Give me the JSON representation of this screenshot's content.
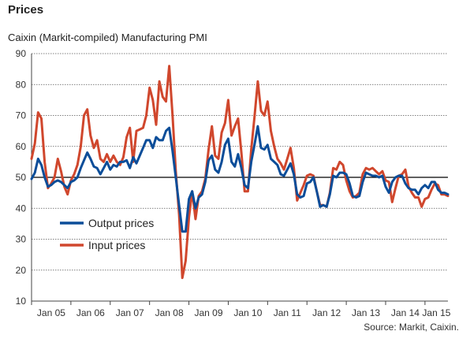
{
  "chart_data": {
    "type": "line",
    "title": "Prices",
    "subtitle": "Caixin (Markit-compiled) Manufacturing PMI",
    "source": "Source: Markit, Caixin.",
    "ylim": [
      10,
      90
    ],
    "yticks": [
      10,
      20,
      30,
      40,
      50,
      60,
      70,
      80,
      90
    ],
    "xticks": [
      "Jan 05",
      "Jan 06",
      "Jan 07",
      "Jan 08",
      "Jan 09",
      "Jan 10",
      "Jan 11",
      "Jan 12",
      "Jan 13",
      "Jan 14",
      "Jan 15"
    ],
    "reference_line": 50,
    "grid": "horizontal dotted",
    "legend_position": "lower-left",
    "start_month": "Jan 05",
    "series": [
      {
        "name": "Output prices",
        "color": "#0b4d99",
        "values": [
          49.5,
          51.5,
          56,
          54,
          50,
          47,
          47.5,
          48.5,
          49,
          48.5,
          47.5,
          46.5,
          48.5,
          49,
          50,
          53,
          55.5,
          58,
          56,
          53.5,
          53,
          51,
          53,
          55,
          52.5,
          54,
          53.5,
          55,
          55,
          55.5,
          53,
          56.5,
          54.5,
          57,
          59.5,
          62,
          62,
          59.5,
          63,
          62,
          62,
          65,
          66,
          58.5,
          50,
          41,
          32.5,
          32.5,
          43,
          45.5,
          40,
          43.5,
          44.5,
          48.5,
          55.5,
          57,
          52.5,
          51.5,
          55,
          60.5,
          62.5,
          55,
          53.5,
          57.5,
          53,
          47.5,
          46.5,
          55,
          60.5,
          66.5,
          59.5,
          59,
          60.5,
          56,
          55,
          54,
          51,
          50.5,
          52.5,
          54.5,
          51,
          44.5,
          43.5,
          44,
          48,
          48.5,
          50,
          45.5,
          40.5,
          41,
          40.5,
          44.5,
          50.5,
          50,
          51.5,
          51.5,
          51,
          48,
          44,
          43.5,
          44,
          48.5,
          51.5,
          51,
          50.5,
          50.5,
          50,
          50.5,
          47,
          45,
          48.5,
          50,
          50.5,
          50.5,
          48,
          46.5,
          46,
          46,
          44.5,
          46.5,
          47.5,
          46.5,
          48.5,
          48.5,
          46,
          45,
          45,
          44.5
        ]
      },
      {
        "name": "Input prices",
        "color": "#d0472d",
        "values": [
          56,
          61,
          71,
          69,
          55,
          46.5,
          48,
          50,
          56,
          52,
          47,
          44.5,
          49,
          51,
          54,
          60,
          70,
          72,
          63.5,
          59.5,
          62,
          56,
          55,
          57.5,
          55,
          57,
          55,
          54,
          56.5,
          63,
          66,
          55,
          65,
          65.5,
          66,
          70,
          79,
          75,
          67,
          81,
          76,
          74.5,
          86,
          70,
          52,
          38,
          17.5,
          23,
          37,
          45.5,
          36.5,
          44,
          45.5,
          49.5,
          59,
          66.5,
          57,
          56,
          64.5,
          67.5,
          75,
          63.5,
          66.5,
          69,
          58,
          45.5,
          45.5,
          59,
          69.5,
          81,
          71.5,
          70,
          74.5,
          65,
          60,
          56,
          54.5,
          52.5,
          56,
          59.5,
          53,
          42.5,
          45,
          47.5,
          50.5,
          51,
          50.5,
          45.5,
          41,
          41,
          40.5,
          45,
          53,
          52.5,
          55,
          54,
          49,
          45.5,
          43.5,
          44,
          45,
          51,
          53,
          52.5,
          53,
          52,
          51,
          52,
          49,
          48.5,
          42,
          46.5,
          50.5,
          51,
          52.5,
          47,
          45,
          43.5,
          43.5,
          40.5,
          43,
          43.5,
          46,
          48,
          47.5,
          44.5,
          44.5,
          44
        ]
      }
    ]
  }
}
